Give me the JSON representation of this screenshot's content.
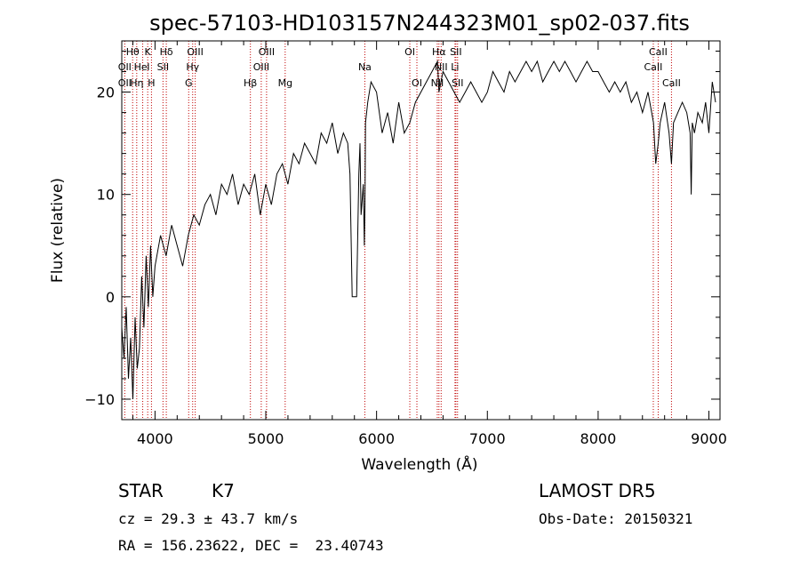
{
  "chart_data": {
    "type": "line",
    "title": "spec-57103-HD103157N244323M01_sp02-037.fits",
    "xlabel": "Wavelength (Å)",
    "ylabel": "Flux (relative)",
    "xlim": [
      3700,
      9100
    ],
    "ylim": [
      -12,
      25
    ],
    "x_ticks": [
      4000,
      5000,
      6000,
      7000,
      8000,
      9000
    ],
    "y_ticks": [
      -10,
      0,
      10,
      20
    ],
    "grid": false,
    "series": [
      {
        "x": [
          3700,
          3720,
          3740,
          3760,
          3780,
          3800,
          3820,
          3840,
          3860,
          3880,
          3900,
          3920,
          3940,
          3960,
          3980,
          4000,
          4050,
          4100,
          4150,
          4200,
          4250,
          4300,
          4350,
          4400,
          4450,
          4500,
          4550,
          4600,
          4650,
          4700,
          4750,
          4800,
          4850,
          4900,
          4950,
          5000,
          5050,
          5100,
          5150,
          5200,
          5250,
          5300,
          5350,
          5400,
          5450,
          5500,
          5550,
          5600,
          5650,
          5700,
          5740,
          5760,
          5780,
          5800,
          5820,
          5840,
          5850,
          5860,
          5880,
          5890,
          5895,
          5900,
          5920,
          5950,
          6000,
          6050,
          6100,
          6150,
          6200,
          6250,
          6300,
          6350,
          6400,
          6450,
          6500,
          6550,
          6563,
          6600,
          6650,
          6700,
          6750,
          6800,
          6850,
          6900,
          6950,
          7000,
          7050,
          7100,
          7150,
          7200,
          7250,
          7300,
          7350,
          7400,
          7450,
          7500,
          7550,
          7600,
          7650,
          7700,
          7750,
          7800,
          7850,
          7900,
          7950,
          8000,
          8050,
          8100,
          8150,
          8200,
          8250,
          8300,
          8350,
          8400,
          8450,
          8500,
          8520,
          8542,
          8560,
          8600,
          8640,
          8662,
          8680,
          8720,
          8760,
          8800,
          8830,
          8840,
          8850,
          8870,
          8900,
          8940,
          8970,
          9000,
          9030,
          9060
        ],
        "y": [
          -3,
          -6,
          -1,
          -8,
          -4,
          -10,
          -2,
          -7,
          -5,
          2,
          -3,
          4,
          -1,
          5,
          0,
          3,
          6,
          4,
          7,
          5,
          3,
          6,
          8,
          7,
          9,
          10,
          8,
          11,
          10,
          12,
          9,
          11,
          10,
          12,
          8,
          11,
          9,
          12,
          13,
          11,
          14,
          13,
          15,
          14,
          13,
          16,
          15,
          17,
          14,
          16,
          15,
          12,
          0,
          0,
          0,
          12,
          15,
          8,
          11,
          5,
          9,
          17,
          19,
          21,
          20,
          16,
          18,
          15,
          19,
          16,
          17,
          19,
          20,
          21,
          22,
          23,
          20,
          22,
          21,
          20,
          19,
          20,
          21,
          20,
          19,
          20,
          22,
          21,
          20,
          22,
          21,
          22,
          23,
          22,
          23,
          21,
          22,
          23,
          22,
          23,
          22,
          21,
          22,
          23,
          22,
          22,
          21,
          20,
          21,
          20,
          21,
          19,
          20,
          18,
          20,
          17,
          13,
          15,
          17,
          19,
          16,
          13,
          17,
          18,
          19,
          18,
          16,
          10,
          17,
          16,
          18,
          17,
          19,
          16,
          21,
          19
        ]
      }
    ],
    "vlines": [
      {
        "x": 3727,
        "color": "#c00000"
      },
      {
        "x": 3798,
        "color": "#c00000"
      },
      {
        "x": 3835,
        "color": "#c00000"
      },
      {
        "x": 3889,
        "color": "#c00000"
      },
      {
        "x": 3934,
        "color": "#c00000"
      },
      {
        "x": 3968,
        "color": "#c00000"
      },
      {
        "x": 4072,
        "color": "#c00000"
      },
      {
        "x": 4102,
        "color": "#c00000"
      },
      {
        "x": 4304,
        "color": "#c00000"
      },
      {
        "x": 4340,
        "color": "#c00000"
      },
      {
        "x": 4363,
        "color": "#c00000"
      },
      {
        "x": 4861,
        "color": "#c00000"
      },
      {
        "x": 4959,
        "color": "#c00000"
      },
      {
        "x": 5007,
        "color": "#c00000"
      },
      {
        "x": 5175,
        "color": "#c00000"
      },
      {
        "x": 5894,
        "color": "#c00000"
      },
      {
        "x": 6300,
        "color": "#c00000"
      },
      {
        "x": 6364,
        "color": "#c00000"
      },
      {
        "x": 6548,
        "color": "#c00000"
      },
      {
        "x": 6563,
        "color": "#c00000"
      },
      {
        "x": 6583,
        "color": "#c00000"
      },
      {
        "x": 6708,
        "color": "#c00000"
      },
      {
        "x": 6716,
        "color": "#c00000"
      },
      {
        "x": 6731,
        "color": "#c00000"
      },
      {
        "x": 8498,
        "color": "#c00000"
      },
      {
        "x": 8542,
        "color": "#c00000"
      },
      {
        "x": 8662,
        "color": "#c00000"
      }
    ],
    "line_labels": [
      {
        "text": "Hθ",
        "x": 3798,
        "row": 0
      },
      {
        "text": "K",
        "x": 3934,
        "row": 0
      },
      {
        "text": "Hδ",
        "x": 4102,
        "row": 0
      },
      {
        "text": "OIII",
        "x": 4363,
        "row": 0
      },
      {
        "text": "OIII",
        "x": 5007,
        "row": 0
      },
      {
        "text": "OI",
        "x": 6300,
        "row": 0
      },
      {
        "text": "Hα",
        "x": 6563,
        "row": 0
      },
      {
        "text": "SII",
        "x": 6716,
        "row": 0
      },
      {
        "text": "CaII",
        "x": 8542,
        "row": 0
      },
      {
        "text": "OII",
        "x": 3727,
        "row": 1
      },
      {
        "text": "He",
        "x": 3870,
        "row": 1
      },
      {
        "text": "I",
        "x": 3940,
        "row": 1
      },
      {
        "text": "SII",
        "x": 4072,
        "row": 1
      },
      {
        "text": "Hγ",
        "x": 4340,
        "row": 1
      },
      {
        "text": "OIII",
        "x": 4959,
        "row": 1
      },
      {
        "text": "Na",
        "x": 5894,
        "row": 1
      },
      {
        "text": "NII",
        "x": 6583,
        "row": 1
      },
      {
        "text": "Li",
        "x": 6708,
        "row": 1
      },
      {
        "text": "CaII",
        "x": 8498,
        "row": 1
      },
      {
        "text": "OII",
        "x": 3727,
        "row": 2
      },
      {
        "text": "Hη",
        "x": 3835,
        "row": 2
      },
      {
        "text": "H",
        "x": 3968,
        "row": 2
      },
      {
        "text": "G",
        "x": 4304,
        "row": 2
      },
      {
        "text": "Hβ",
        "x": 4861,
        "row": 2
      },
      {
        "text": "Mg",
        "x": 5175,
        "row": 2
      },
      {
        "text": "OI",
        "x": 6364,
        "row": 2
      },
      {
        "text": "NII",
        "x": 6548,
        "row": 2
      },
      {
        "text": "SII",
        "x": 6731,
        "row": 2
      },
      {
        "text": "CaII",
        "x": 8662,
        "row": 2
      }
    ]
  },
  "info": {
    "object_class": "STAR",
    "subclass": "K7",
    "survey": "LAMOST DR5",
    "redshift": "cz = 29.3 ± 43.7 km/s",
    "obs_date": "Obs-Date: 20150321",
    "coords": "RA = 156.23622, DEC =  23.40743"
  }
}
